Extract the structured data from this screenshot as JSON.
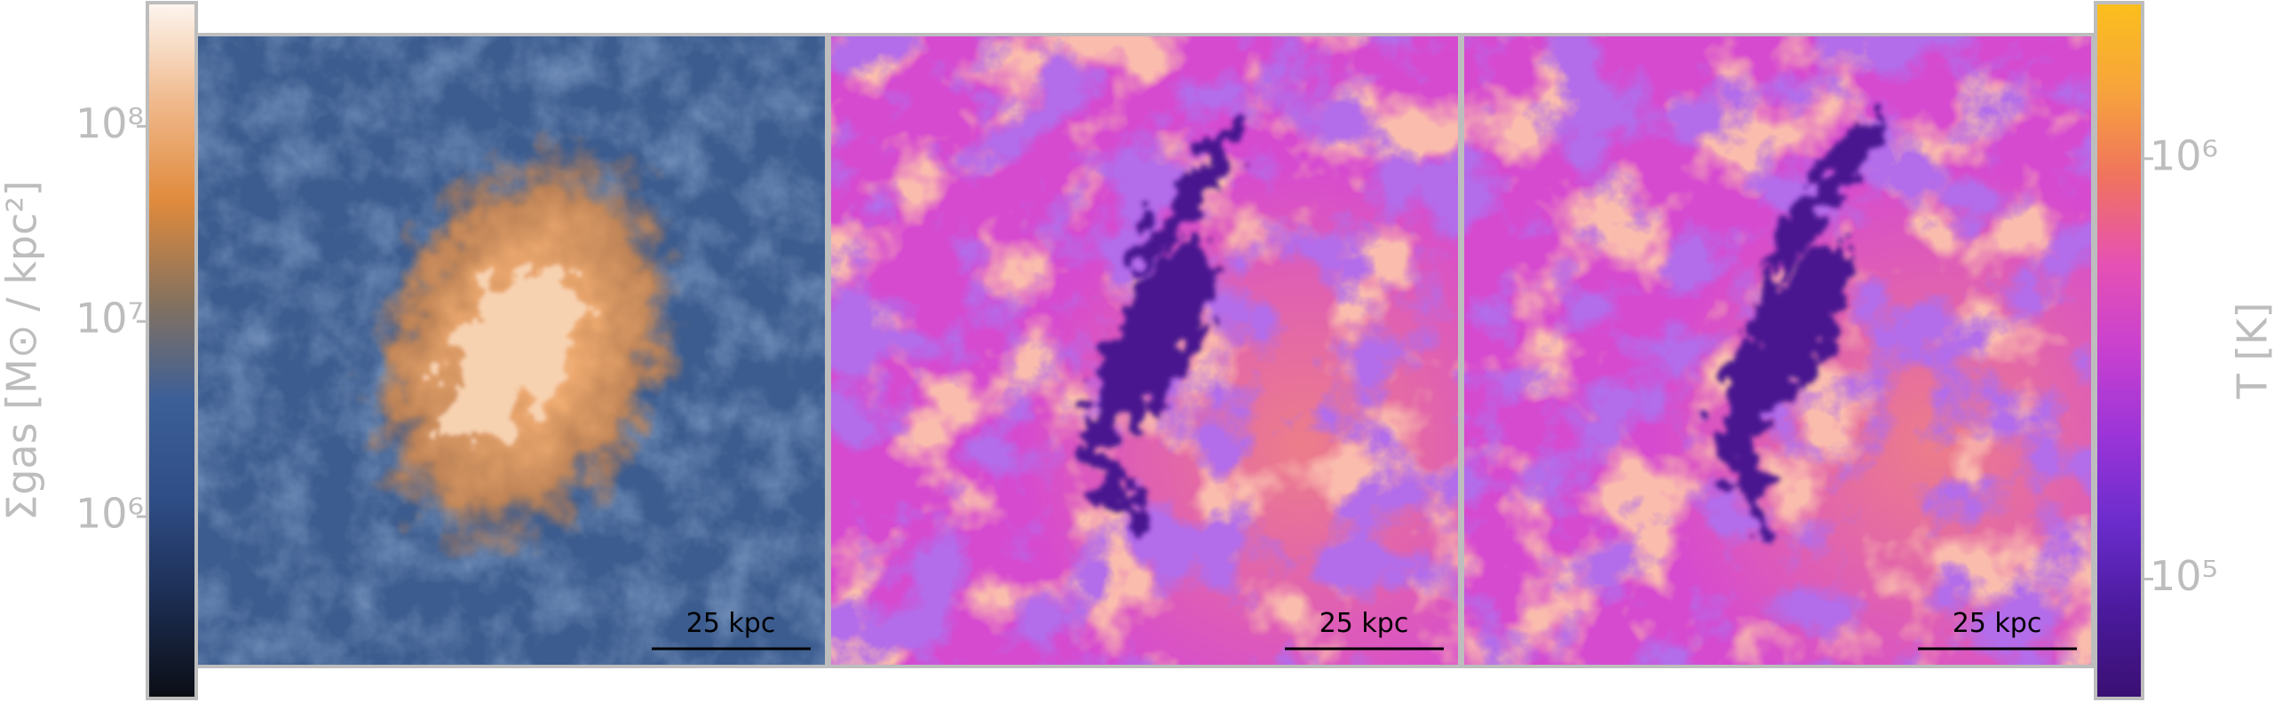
{
  "chart_data": [
    {
      "type": "colorbar",
      "side": "left",
      "ylabel": "Σgas [M⊙ / kpc²]",
      "log_scale": true,
      "ylim": [
        117000,
        430000000
      ],
      "yticks": [
        {
          "value": 1000000,
          "label": "10⁶"
        },
        {
          "value": 10000000,
          "label": "10⁷"
        },
        {
          "value": 100000000,
          "label": "10⁸"
        }
      ],
      "colormap": [
        "#0b0d14",
        "#1c2d52",
        "#2f4d86",
        "#3c5f98",
        "#86725e",
        "#e08a3c",
        "#f0b98c",
        "#fdf6f0"
      ]
    },
    {
      "type": "colorbar",
      "side": "right",
      "ylabel": "T [K]",
      "log_scale": true,
      "ylim": [
        52000,
        2350000
      ],
      "yticks": [
        {
          "value": 100000,
          "label": "10⁵"
        },
        {
          "value": 1000000,
          "label": "10⁶"
        }
      ],
      "colormap": [
        "#3a0f72",
        "#4a1a9c",
        "#6a2ccc",
        "#9a34d8",
        "#c840d0",
        "#e651b4",
        "#f0735e",
        "#f7a43c",
        "#fbbf1c"
      ]
    }
  ],
  "panels": [
    {
      "scale_bar": "25 kpc"
    },
    {
      "scale_bar": "25 kpc"
    },
    {
      "scale_bar": "25 kpc"
    }
  ]
}
